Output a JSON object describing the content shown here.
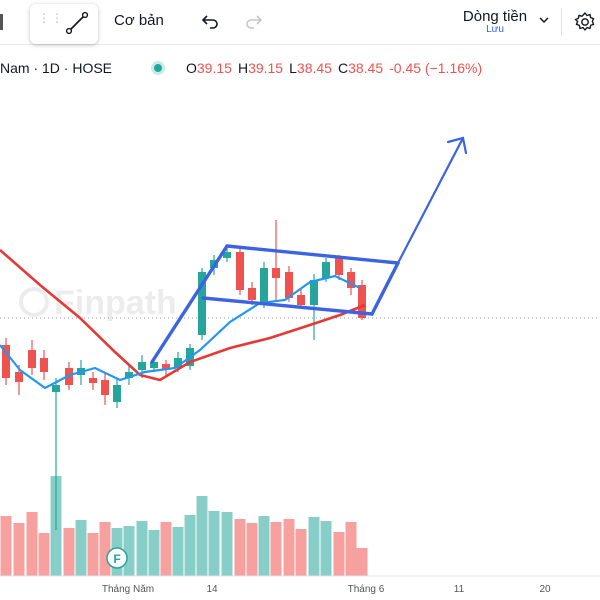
{
  "toolbar": {
    "line_tool_icon": "trend-line-icon",
    "chart_style_label": "Cơ bản",
    "undo_icon": "undo-icon",
    "redo_icon": "redo-icon",
    "flow_label": "Dòng tiền",
    "flow_sub": "Lưu",
    "settings_icon": "gear-icon"
  },
  "legend": {
    "symbol": "Nam · 1D · HOSE",
    "open_key": "O",
    "open": "39.15",
    "high_key": "H",
    "high": "39.15",
    "low_key": "L",
    "low": "38.45",
    "close_key": "C",
    "close": "38.45",
    "change": "-0.45 (−1.16%)"
  },
  "watermark": "Finpath",
  "volume_badge": "F",
  "x_axis": [
    "Tháng Năm",
    "14",
    "Tháng 6",
    "11",
    "20"
  ],
  "colors": {
    "up": "#26a69a",
    "down": "#ef5350",
    "ma_fast": "#2196f3",
    "ma_slow": "#e53935",
    "drawing": "#3c63e0"
  }
}
